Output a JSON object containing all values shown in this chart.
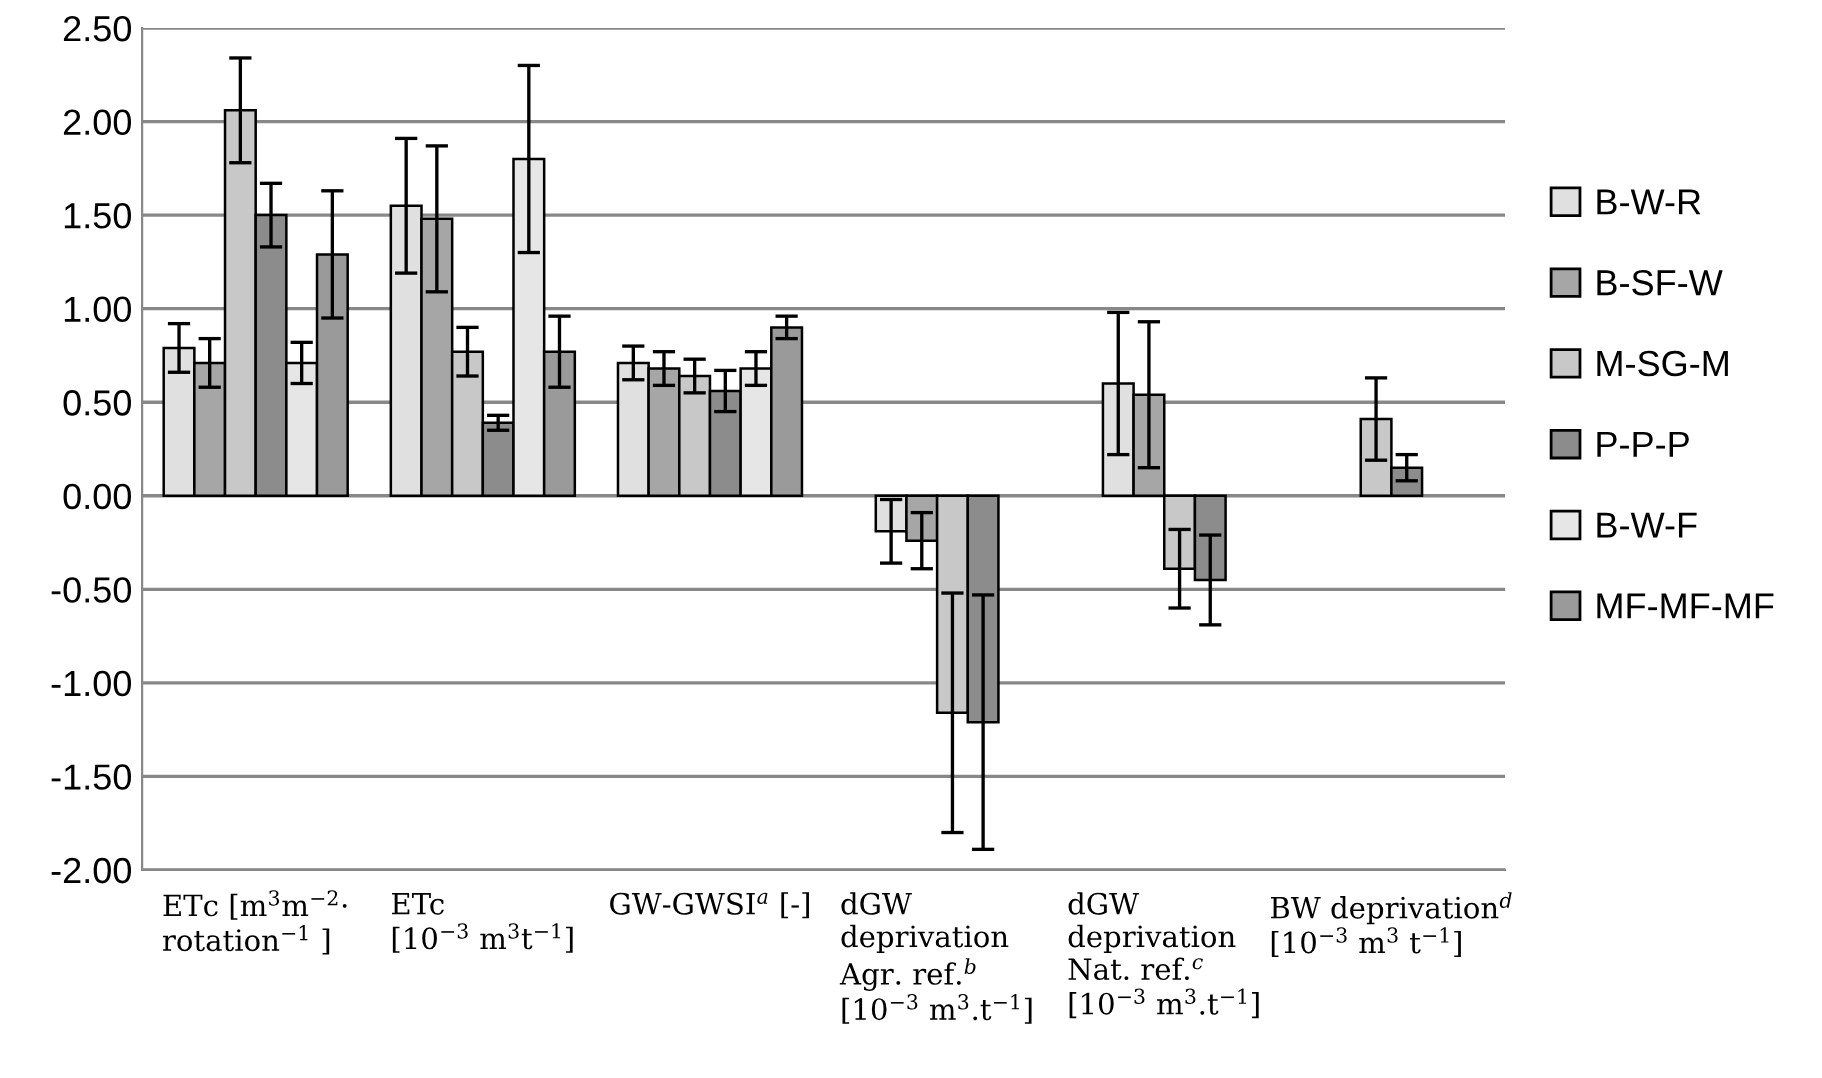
{
  "chart_data": {
    "type": "bar",
    "categories": [
      "ETc [m$^{3}$m$^{−2}$·\nrotation$^{−1}$ ]",
      "ETc\n[10$^{−3}$ m$^{3}$t$^{−1}$]",
      "GW-GWSI$^{a}$ [-]",
      "dGW\ndeprivation\nAgr. ref.$^{b}$\n[10$^{−3}$ m$^{3}$.t$^{−1}$]",
      "dGW\ndeprivation\nNat. ref.$^{c}$\n[10$^{−3}$ m$^{3}$.t$^{−1}$]",
      "BW deprivation$^{d}$\n[10$^{−3}$ m$^{3}$ t$^{−1}$]"
    ],
    "series": [
      {
        "name": "B-W-R",
        "color": "#e0e0e0",
        "values": [
          0.79,
          1.55,
          0.71,
          -0.19,
          0.6,
          null
        ],
        "errors": [
          0.13,
          0.36,
          0.09,
          0.17,
          0.38,
          null
        ]
      },
      {
        "name": "B-SF-W",
        "color": "#a6a6a6",
        "values": [
          0.71,
          1.48,
          0.68,
          -0.24,
          0.54,
          null
        ],
        "errors": [
          0.13,
          0.39,
          0.09,
          0.15,
          0.39,
          null
        ]
      },
      {
        "name": "M-SG-M",
        "color": "#c8c8c8",
        "values": [
          2.06,
          0.77,
          0.64,
          -1.16,
          -0.39,
          0.41
        ],
        "errors": [
          0.28,
          0.13,
          0.09,
          0.64,
          0.21,
          0.22
        ]
      },
      {
        "name": "P-P-P",
        "color": "#8c8c8c",
        "values": [
          1.5,
          0.39,
          0.56,
          -1.21,
          -0.45,
          0.15
        ],
        "errors": [
          0.17,
          0.04,
          0.11,
          0.68,
          0.24,
          0.07
        ]
      },
      {
        "name": "B-W-F",
        "color": "#e6e6e6",
        "values": [
          0.71,
          1.8,
          0.68,
          null,
          null,
          null
        ],
        "errors": [
          0.11,
          0.5,
          0.09,
          null,
          null,
          null
        ]
      },
      {
        "name": "MF-MF-MF",
        "color": "#9a9a9a",
        "values": [
          1.29,
          0.77,
          0.9,
          null,
          null,
          null
        ],
        "errors": [
          0.34,
          0.19,
          0.06,
          null,
          null,
          null
        ]
      }
    ],
    "ylim": [
      -2.0,
      2.5
    ],
    "yticks": [
      {
        "value": -2.0,
        "label": "-2.00"
      },
      {
        "value": -1.5,
        "label": "-1.50"
      },
      {
        "value": -1.0,
        "label": "-1.00"
      },
      {
        "value": -0.5,
        "label": "-0.50"
      },
      {
        "value": 0.0,
        "label": "0.00"
      },
      {
        "value": 0.5,
        "label": "0.50"
      },
      {
        "value": 1.0,
        "label": "1.00"
      },
      {
        "value": 1.5,
        "label": "1.50"
      },
      {
        "value": 2.0,
        "label": "2.00"
      },
      {
        "value": 2.5,
        "label": "2.50"
      }
    ],
    "grid": "y",
    "legend": "right"
  }
}
